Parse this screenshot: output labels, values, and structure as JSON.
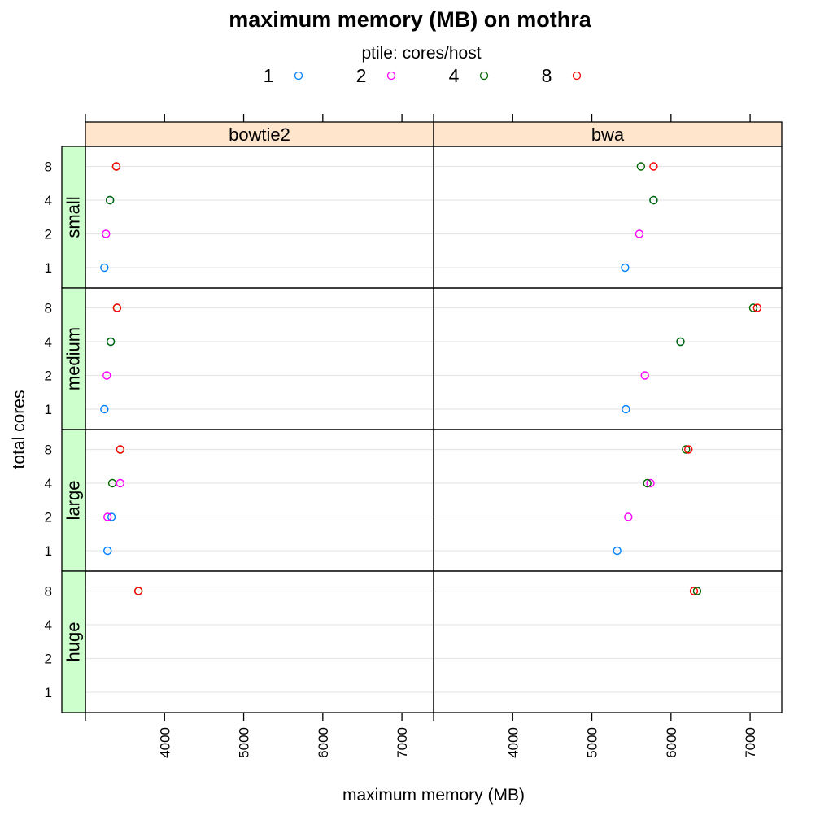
{
  "chart_data": {
    "type": "scatter",
    "title": "maximum memory (MB) on mothra",
    "xlabel": "maximum memory (MB)",
    "ylabel": "total cores",
    "xlim": [
      3000,
      7400
    ],
    "x_ticks": [
      4000,
      5000,
      6000,
      7000
    ],
    "x_tick_labels": [
      "4000",
      "5000",
      "6000",
      "7000"
    ],
    "y_categories": [
      "1",
      "2",
      "4",
      "8"
    ],
    "columns": [
      "bowtie2",
      "bwa"
    ],
    "rows": [
      "small",
      "medium",
      "large",
      "huge"
    ],
    "legend": {
      "title": "ptile: cores/host",
      "position": "top",
      "entries": [
        {
          "label": "1",
          "color": "#0080ff"
        },
        {
          "label": "2",
          "color": "#ff00ff"
        },
        {
          "label": "4",
          "color": "#006400"
        },
        {
          "label": "8",
          "color": "#ff0000"
        }
      ]
    },
    "grid": true,
    "points": [
      {
        "column": "bowtie2",
        "row": "small",
        "cores": "1",
        "ptile": "1",
        "x": 3240
      },
      {
        "column": "bowtie2",
        "row": "small",
        "cores": "2",
        "ptile": "2",
        "x": 3260
      },
      {
        "column": "bowtie2",
        "row": "small",
        "cores": "4",
        "ptile": "1",
        "x": 3310
      },
      {
        "column": "bowtie2",
        "row": "small",
        "cores": "4",
        "ptile": "4",
        "x": 3310
      },
      {
        "column": "bowtie2",
        "row": "small",
        "cores": "8",
        "ptile": "4",
        "x": 3390
      },
      {
        "column": "bowtie2",
        "row": "small",
        "cores": "8",
        "ptile": "8",
        "x": 3390
      },
      {
        "column": "bowtie2",
        "row": "medium",
        "cores": "1",
        "ptile": "1",
        "x": 3240
      },
      {
        "column": "bowtie2",
        "row": "medium",
        "cores": "2",
        "ptile": "2",
        "x": 3270
      },
      {
        "column": "bowtie2",
        "row": "medium",
        "cores": "4",
        "ptile": "1",
        "x": 3320
      },
      {
        "column": "bowtie2",
        "row": "medium",
        "cores": "4",
        "ptile": "4",
        "x": 3320
      },
      {
        "column": "bowtie2",
        "row": "medium",
        "cores": "8",
        "ptile": "4",
        "x": 3400
      },
      {
        "column": "bowtie2",
        "row": "medium",
        "cores": "8",
        "ptile": "8",
        "x": 3400
      },
      {
        "column": "bowtie2",
        "row": "large",
        "cores": "1",
        "ptile": "1",
        "x": 3280
      },
      {
        "column": "bowtie2",
        "row": "large",
        "cores": "2",
        "ptile": "1",
        "x": 3330
      },
      {
        "column": "bowtie2",
        "row": "large",
        "cores": "2",
        "ptile": "2",
        "x": 3280
      },
      {
        "column": "bowtie2",
        "row": "large",
        "cores": "4",
        "ptile": "4",
        "x": 3340
      },
      {
        "column": "bowtie2",
        "row": "large",
        "cores": "4",
        "ptile": "2",
        "x": 3440
      },
      {
        "column": "bowtie2",
        "row": "large",
        "cores": "8",
        "ptile": "4",
        "x": 3440
      },
      {
        "column": "bowtie2",
        "row": "large",
        "cores": "8",
        "ptile": "8",
        "x": 3440
      },
      {
        "column": "bowtie2",
        "row": "huge",
        "cores": "8",
        "ptile": "4",
        "x": 3670
      },
      {
        "column": "bowtie2",
        "row": "huge",
        "cores": "8",
        "ptile": "8",
        "x": 3670
      },
      {
        "column": "bwa",
        "row": "small",
        "cores": "1",
        "ptile": "1",
        "x": 5420
      },
      {
        "column": "bwa",
        "row": "small",
        "cores": "2",
        "ptile": "2",
        "x": 5600
      },
      {
        "column": "bwa",
        "row": "small",
        "cores": "4",
        "ptile": "1",
        "x": 5780
      },
      {
        "column": "bwa",
        "row": "small",
        "cores": "4",
        "ptile": "4",
        "x": 5780
      },
      {
        "column": "bwa",
        "row": "small",
        "cores": "8",
        "ptile": "4",
        "x": 5620
      },
      {
        "column": "bwa",
        "row": "small",
        "cores": "8",
        "ptile": "8",
        "x": 5780
      },
      {
        "column": "bwa",
        "row": "medium",
        "cores": "1",
        "ptile": "1",
        "x": 5430
      },
      {
        "column": "bwa",
        "row": "medium",
        "cores": "2",
        "ptile": "2",
        "x": 5670
      },
      {
        "column": "bwa",
        "row": "medium",
        "cores": "4",
        "ptile": "1",
        "x": 6120
      },
      {
        "column": "bwa",
        "row": "medium",
        "cores": "4",
        "ptile": "4",
        "x": 6120
      },
      {
        "column": "bwa",
        "row": "medium",
        "cores": "8",
        "ptile": "4",
        "x": 7040
      },
      {
        "column": "bwa",
        "row": "medium",
        "cores": "8",
        "ptile": "8",
        "x": 7090
      },
      {
        "column": "bwa",
        "row": "large",
        "cores": "1",
        "ptile": "1",
        "x": 5320
      },
      {
        "column": "bwa",
        "row": "large",
        "cores": "2",
        "ptile": "2",
        "x": 5460
      },
      {
        "column": "bwa",
        "row": "large",
        "cores": "4",
        "ptile": "2",
        "x": 5740
      },
      {
        "column": "bwa",
        "row": "large",
        "cores": "4",
        "ptile": "4",
        "x": 5700
      },
      {
        "column": "bwa",
        "row": "large",
        "cores": "8",
        "ptile": "4",
        "x": 6190
      },
      {
        "column": "bwa",
        "row": "large",
        "cores": "8",
        "ptile": "8",
        "x": 6220
      },
      {
        "column": "bwa",
        "row": "huge",
        "cores": "8",
        "ptile": "8",
        "x": 6290
      },
      {
        "column": "bwa",
        "row": "huge",
        "cores": "8",
        "ptile": "4",
        "x": 6330
      }
    ]
  },
  "colors": {
    "strip_column_bg": "#ffe5cc",
    "strip_row_bg": "#ccffcc",
    "gridline": "#e6e6e6",
    "frame": "#000000"
  }
}
